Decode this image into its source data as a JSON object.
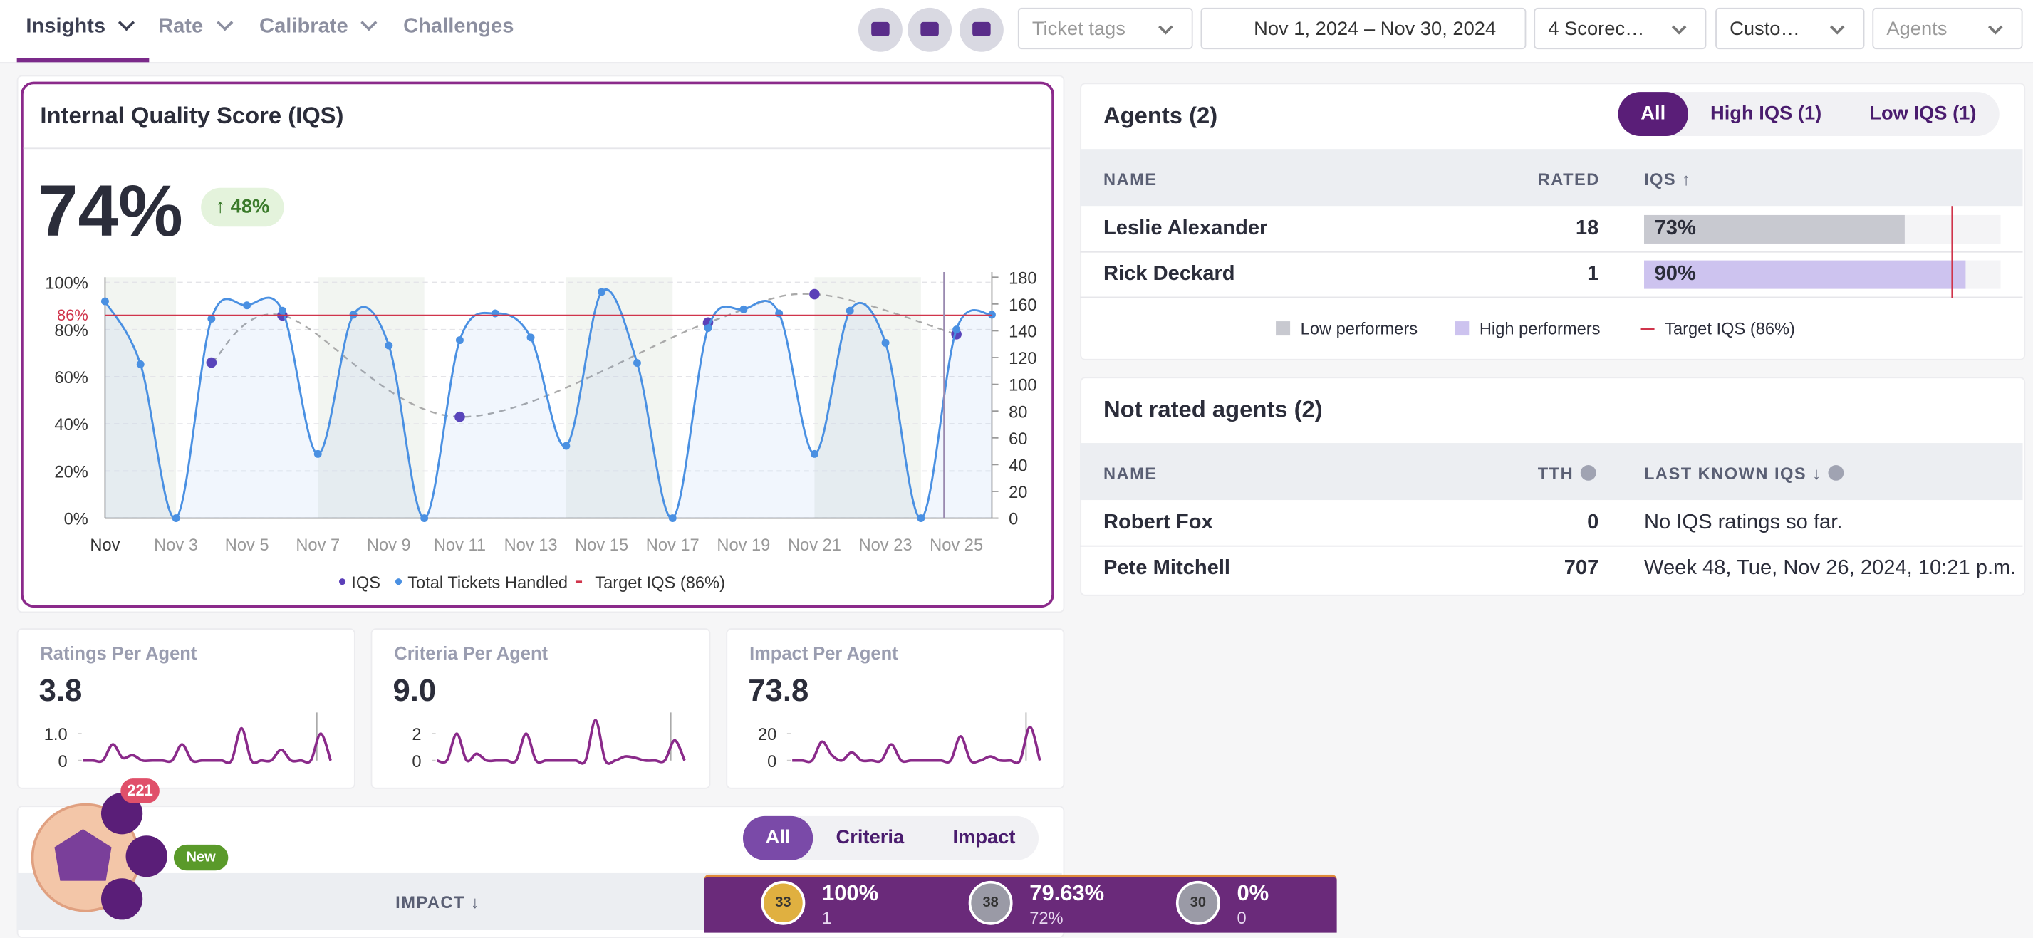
{
  "nav": {
    "tabs": [
      "Insights",
      "Rate",
      "Calibrate",
      "Challenges"
    ],
    "filters": [
      "Ticket tags",
      "Nov 1, 2024 – Nov 30, 2024",
      "4 Scorec…",
      "Custo…",
      "Agents"
    ]
  },
  "iqs_card": {
    "title": "Internal Quality Score (IQS)",
    "score": "74%",
    "change": "↑ 48%",
    "chart_data": {
      "type": "line",
      "categories": [
        "Nov",
        null,
        "Nov 3",
        null,
        "Nov 5",
        null,
        "Nov 7",
        null,
        "Nov 9",
        null,
        "Nov 11",
        null,
        "Nov 13",
        null,
        "Nov 15",
        null,
        "Nov 17",
        null,
        "Nov 19",
        null,
        "Nov 21",
        null,
        "Nov 23",
        null,
        "Nov 25",
        null
      ],
      "series": [
        {
          "name": "IQS",
          "color": "#5b3fb8",
          "values": [
            null,
            null,
            null,
            66,
            null,
            86,
            null,
            null,
            null,
            null,
            43,
            null,
            null,
            null,
            null,
            null,
            null,
            83,
            null,
            null,
            95,
            null,
            null,
            null,
            78,
            null
          ]
        },
        {
          "name": "Total Tickets Handled",
          "color": "#4a90e2",
          "axis": "y2",
          "values": [
            162,
            115,
            0,
            149,
            159,
            155,
            48,
            152,
            129,
            0,
            133,
            153,
            135,
            54,
            169,
            116,
            0,
            142,
            156,
            153,
            48,
            155,
            131,
            0,
            141,
            152
          ]
        }
      ],
      "target": {
        "name": "Target IQS (86%)",
        "value": 86,
        "label": "86%",
        "color": "#d0344b"
      },
      "ylim": [
        0,
        100
      ],
      "yticks": [
        {
          "value": 0,
          "label": "0%"
        },
        {
          "value": 20,
          "label": "20%"
        },
        {
          "value": 40,
          "label": "40%"
        },
        {
          "value": 60,
          "label": "60%"
        },
        {
          "value": 80,
          "label": "80%"
        },
        {
          "value": 100,
          "label": "100%"
        }
      ],
      "y2lim": [
        0,
        180
      ],
      "y2ticks": [
        0,
        20,
        40,
        60,
        80,
        100,
        120,
        140,
        160,
        180
      ]
    }
  },
  "metric_cards": [
    {
      "title": "Ratings Per Agent",
      "value": "3.8",
      "chart_data": {
        "type": "line",
        "color": "#8a2a8a",
        "values": [
          0,
          0,
          0,
          0.6,
          0.1,
          0.2,
          0,
          0,
          0,
          0,
          0.6,
          0,
          0,
          0,
          0,
          0,
          1.2,
          0,
          0,
          0,
          0.4,
          0,
          0,
          0,
          1.0,
          0
        ],
        "ylim": [
          0,
          1.5
        ],
        "yticks": [
          0,
          {
            "value": 1,
            "label": "1.0"
          }
        ]
      }
    },
    {
      "title": "Criteria Per Agent",
      "value": "9.0",
      "chart_data": {
        "type": "line",
        "color": "#8a2a8a",
        "values": [
          0,
          0,
          2,
          0,
          0.5,
          0,
          0,
          0,
          0,
          2,
          0,
          0,
          0,
          0,
          0,
          0,
          3,
          0,
          0,
          0.3,
          0.2,
          0,
          0,
          0,
          1.5,
          0
        ],
        "ylim": [
          0,
          3
        ],
        "yticks": [
          0,
          2
        ]
      }
    },
    {
      "title": "Impact Per Agent",
      "value": "73.8",
      "chart_data": {
        "type": "line",
        "color": "#8a2a8a",
        "values": [
          0,
          0,
          0,
          14,
          4,
          0,
          6,
          0,
          0,
          0,
          12,
          0,
          0,
          0,
          0,
          0,
          0,
          18,
          0,
          0,
          3,
          0,
          0,
          0,
          25,
          0
        ],
        "ylim": [
          0,
          30
        ],
        "yticks": [
          0,
          20
        ]
      }
    }
  ],
  "agents": {
    "title": "Agents (2)",
    "toggle": [
      "All",
      "High IQS (1)",
      "Low IQS (1)"
    ],
    "headers": [
      "NAME",
      "RATED",
      "IQS ↑"
    ],
    "rows": [
      {
        "name": "Leslie Alexander",
        "rated": "18",
        "iqs": 73,
        "iqs_label": "73%",
        "group": "low"
      },
      {
        "name": "Rick Deckard",
        "rated": "1",
        "iqs": 90,
        "iqs_label": "90%",
        "group": "high"
      }
    ],
    "legend": [
      "Low performers",
      "High performers",
      "Target IQS (86%)"
    ],
    "target": 86
  },
  "not_rated": {
    "title": "Not rated agents (2)",
    "headers": [
      "NAME",
      "TTH",
      "LAST KNOWN IQS ↓"
    ],
    "rows": [
      {
        "name": "Robert Fox",
        "tth": "0",
        "last": "No IQS ratings so far."
      },
      {
        "name": "Pete Mitchell",
        "tth": "707",
        "last": "Week 48, Tue, Nov 26, 2024, 10:21 p.m."
      }
    ]
  },
  "bottom_card": {
    "toggle": [
      "All",
      "Criteria",
      "Impact"
    ],
    "headers": [
      "IMPACT ↓"
    ]
  },
  "widget": {
    "badge": "221",
    "new": "New"
  },
  "gamification": [
    {
      "rank": "33",
      "value": "100%",
      "sub": "1"
    },
    {
      "rank": "38",
      "value": "79.63%",
      "sub": "72%"
    },
    {
      "rank": "30",
      "value": "0%",
      "sub": "0"
    }
  ]
}
